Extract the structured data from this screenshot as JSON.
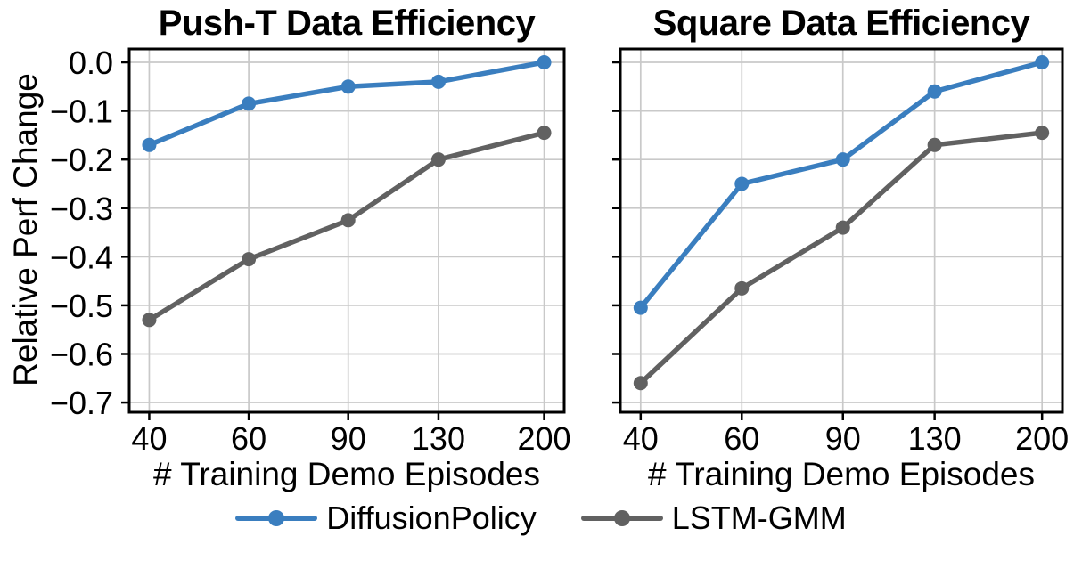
{
  "style": {
    "background": "#ffffff",
    "grid_color": "#c9c9c9",
    "spine_color": "#000000",
    "text_color": "#000000",
    "series_blue": "#3a7ebf",
    "series_gray": "#616161"
  },
  "legend": {
    "items": [
      {
        "label": "DiffusionPolicy",
        "color": "#3a7ebf"
      },
      {
        "label": "LSTM-GMM",
        "color": "#616161"
      }
    ]
  },
  "chart_data": [
    {
      "type": "line",
      "title": "Push-T Data Efficiency",
      "xlabel": "# Training Demo Episodes",
      "ylabel": "Relative Perf Change",
      "x_scale": "log",
      "x": [
        40,
        60,
        90,
        130,
        200
      ],
      "x_tick_labels": [
        "40",
        "60",
        "90",
        "130",
        "200"
      ],
      "y_ticks": [
        0.0,
        -0.1,
        -0.2,
        -0.3,
        -0.4,
        -0.5,
        -0.6,
        -0.7
      ],
      "ylim": [
        0.0275,
        -0.72
      ],
      "grid": true,
      "legend_position": "bottom",
      "show_y_tick_labels": true,
      "series": [
        {
          "name": "DiffusionPolicy",
          "color": "#3a7ebf",
          "values": [
            -0.17,
            -0.085,
            -0.05,
            -0.04,
            0.0
          ]
        },
        {
          "name": "LSTM-GMM",
          "color": "#616161",
          "values": [
            -0.53,
            -0.405,
            -0.325,
            -0.2,
            -0.145
          ]
        }
      ]
    },
    {
      "type": "line",
      "title": "Square Data Efficiency",
      "xlabel": "# Training Demo Episodes",
      "ylabel": "",
      "x_scale": "log",
      "x": [
        40,
        60,
        90,
        130,
        200
      ],
      "x_tick_labels": [
        "40",
        "60",
        "90",
        "130",
        "200"
      ],
      "y_ticks": [
        0.0,
        -0.1,
        -0.2,
        -0.3,
        -0.4,
        -0.5,
        -0.6,
        -0.7
      ],
      "ylim": [
        0.0275,
        -0.72
      ],
      "grid": true,
      "legend_position": "bottom",
      "show_y_tick_labels": false,
      "series": [
        {
          "name": "DiffusionPolicy",
          "color": "#3a7ebf",
          "values": [
            -0.505,
            -0.25,
            -0.2,
            -0.06,
            0.0
          ]
        },
        {
          "name": "LSTM-GMM",
          "color": "#616161",
          "values": [
            -0.66,
            -0.465,
            -0.34,
            -0.17,
            -0.145
          ]
        }
      ]
    }
  ]
}
